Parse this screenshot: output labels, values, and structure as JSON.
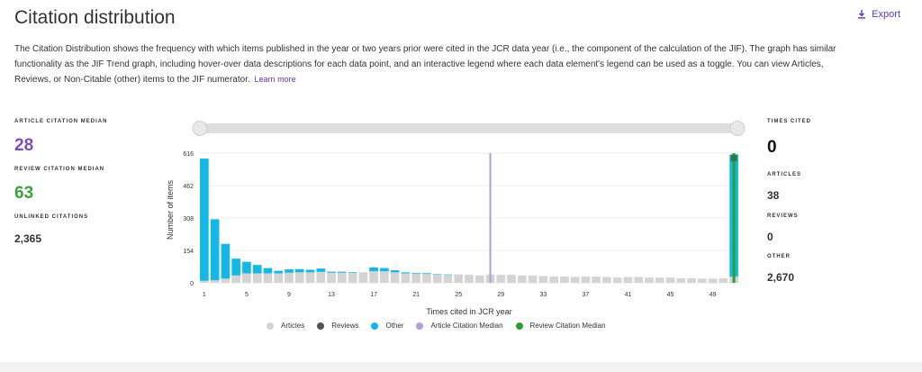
{
  "header": {
    "title": "Citation distribution",
    "export_label": "Export",
    "description": "The Citation Distribution shows the frequency with which items published in the year or two years prior were cited in the JCR data year (i.e., the component of the calculation of the JIF). The graph has similar functionality as the JIF Trend graph, including hover-over data descriptions for each data point, and an interactive legend where each data element's legend can be used as a toggle. You can view Articles, Reviews, or Non-Citable (other) items to the JIF numerator.",
    "learn_more": "Learn more"
  },
  "left_stats": {
    "article_median_label": "ARTICLE CITATION MEDIAN",
    "article_median_value": "28",
    "review_median_label": "REVIEW CITATION MEDIAN",
    "review_median_value": "63",
    "unlinked_label": "UNLINKED CITATIONS",
    "unlinked_value": "2,365"
  },
  "right_stats": {
    "times_cited_label": "TIMES CITED",
    "times_cited_value": "0",
    "articles_label": "ARTICLES",
    "articles_value": "38",
    "reviews_label": "REVIEWS",
    "reviews_value": "0",
    "other_label": "OTHER",
    "other_value": "2,670"
  },
  "colors": {
    "articles": "#d4d4d4",
    "reviews": "#555555",
    "other": "#14b8e6",
    "article_median": "#b39ddb",
    "review_median": "#2e9e2e"
  },
  "chart_data": {
    "type": "bar",
    "stacked": true,
    "xlabel": "Times cited in JCR year",
    "ylabel": "Number of items",
    "ylim": [
      0,
      616
    ],
    "yticks": [
      0,
      154,
      308,
      462,
      616
    ],
    "xticks": [
      1,
      5,
      9,
      13,
      17,
      21,
      25,
      29,
      33,
      37,
      41,
      45,
      49
    ],
    "x": [
      1,
      2,
      3,
      4,
      5,
      6,
      7,
      8,
      9,
      10,
      11,
      12,
      13,
      14,
      15,
      16,
      17,
      18,
      19,
      20,
      21,
      22,
      23,
      24,
      25,
      26,
      27,
      28,
      29,
      30,
      31,
      32,
      33,
      34,
      35,
      36,
      37,
      38,
      39,
      40,
      41,
      42,
      43,
      44,
      45,
      46,
      47,
      48,
      49,
      50,
      51
    ],
    "series": [
      {
        "name": "Articles",
        "values": [
          10,
          12,
          20,
          35,
          45,
          45,
          45,
          45,
          48,
          50,
          50,
          52,
          48,
          48,
          48,
          50,
          55,
          55,
          50,
          45,
          42,
          42,
          40,
          38,
          40,
          38,
          35,
          40,
          38,
          38,
          35,
          35,
          32,
          30,
          30,
          28,
          30,
          30,
          28,
          25,
          28,
          28,
          25,
          25,
          25,
          22,
          22,
          20,
          20,
          22,
          30
        ]
      },
      {
        "name": "Reviews",
        "values": [
          0,
          0,
          0,
          0,
          0,
          0,
          0,
          0,
          0,
          0,
          0,
          0,
          0,
          0,
          0,
          0,
          0,
          0,
          0,
          0,
          0,
          0,
          0,
          0,
          0,
          0,
          0,
          0,
          0,
          0,
          0,
          0,
          0,
          0,
          0,
          0,
          0,
          0,
          0,
          0,
          0,
          0,
          0,
          0,
          0,
          0,
          0,
          0,
          0,
          0,
          0
        ]
      },
      {
        "name": "Other",
        "values": [
          580,
          290,
          165,
          80,
          55,
          40,
          25,
          12,
          16,
          15,
          12,
          16,
          5,
          5,
          3,
          0,
          18,
          15,
          10,
          5,
          4,
          4,
          2,
          2,
          0,
          0,
          0,
          0,
          0,
          0,
          0,
          0,
          0,
          0,
          0,
          0,
          0,
          0,
          0,
          0,
          0,
          0,
          0,
          0,
          0,
          0,
          0,
          0,
          0,
          0,
          580
        ]
      }
    ],
    "article_citation_median": 28,
    "review_citation_median": 63,
    "legend": [
      "Articles",
      "Reviews",
      "Other",
      "Article Citation Median",
      "Review Citation Median"
    ],
    "legend_position": "bottom"
  }
}
